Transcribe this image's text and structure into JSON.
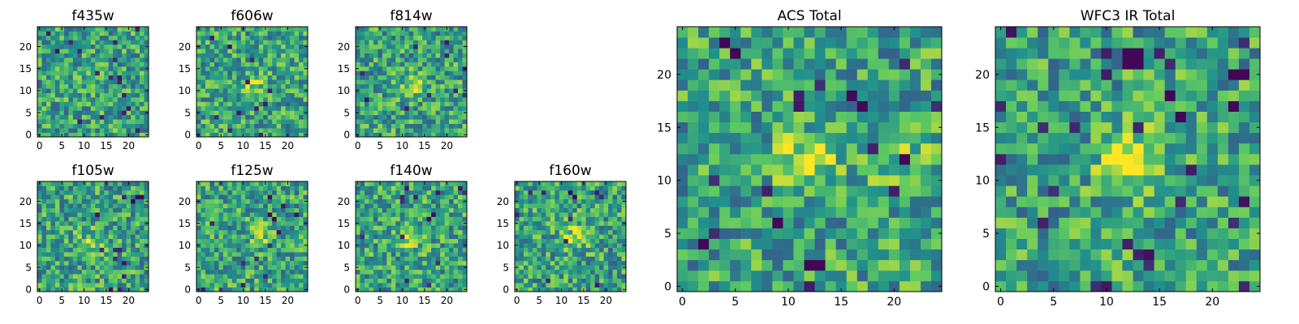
{
  "chart_data": [
    {
      "type": "heatmap",
      "title": "f435w",
      "grid_size": 25,
      "x_ticks": [
        0,
        5,
        10,
        15,
        20
      ],
      "y_ticks": [
        0,
        5,
        10,
        15,
        20
      ],
      "hot_spots": [],
      "dark_spots": []
    },
    {
      "type": "heatmap",
      "title": "f606w",
      "grid_size": 25,
      "x_ticks": [
        0,
        5,
        10,
        15,
        20
      ],
      "y_ticks": [
        0,
        5,
        10,
        15,
        20
      ],
      "hot_spots": [
        [
          12,
          11,
          0.25
        ]
      ],
      "dark_spots": []
    },
    {
      "type": "heatmap",
      "title": "f814w",
      "grid_size": 25,
      "x_ticks": [
        0,
        5,
        10,
        15,
        20
      ],
      "y_ticks": [
        0,
        5,
        10,
        15,
        20
      ],
      "hot_spots": [
        [
          13,
          11,
          0.25
        ]
      ],
      "dark_spots": []
    },
    {
      "type": "heatmap",
      "title": "f105w",
      "grid_size": 25,
      "x_ticks": [
        0,
        5,
        10,
        15,
        20
      ],
      "y_ticks": [
        0,
        5,
        10,
        15,
        20
      ],
      "hot_spots": [
        [
          12,
          11,
          0.2
        ]
      ],
      "dark_spots": [
        [
          22,
          21
        ],
        [
          23,
          21
        ],
        [
          21,
          20
        ]
      ]
    },
    {
      "type": "heatmap",
      "title": "f125w",
      "grid_size": 25,
      "x_ticks": [
        0,
        5,
        10,
        15,
        20
      ],
      "y_ticks": [
        0,
        5,
        10,
        15,
        20
      ],
      "hot_spots": [
        [
          14,
          13,
          0.25
        ]
      ],
      "dark_spots": [
        [
          16,
          17
        ],
        [
          17,
          16
        ]
      ]
    },
    {
      "type": "heatmap",
      "title": "f140w",
      "grid_size": 25,
      "x_ticks": [
        0,
        5,
        10,
        15,
        20
      ],
      "y_ticks": [
        0,
        5,
        10,
        15,
        20
      ],
      "hot_spots": [
        [
          12,
          12,
          0.25
        ]
      ],
      "dark_spots": [
        [
          16,
          16
        ],
        [
          17,
          17
        ]
      ]
    },
    {
      "type": "heatmap",
      "title": "f160w",
      "grid_size": 25,
      "x_ticks": [
        0,
        5,
        10,
        15,
        20
      ],
      "y_ticks": [
        0,
        5,
        10,
        15,
        20
      ],
      "hot_spots": [
        [
          13,
          12,
          0.3
        ]
      ],
      "dark_spots": [
        [
          12,
          22
        ],
        [
          13,
          21
        ]
      ]
    },
    {
      "type": "heatmap",
      "title": "ACS Total",
      "grid_size": 25,
      "x_ticks": [
        0,
        5,
        10,
        15,
        20
      ],
      "y_ticks": [
        0,
        5,
        10,
        15,
        20
      ],
      "hot_spots": [
        [
          12,
          12,
          0.35
        ],
        [
          21,
          11,
          0.2
        ]
      ],
      "dark_spots": [
        [
          4,
          23
        ],
        [
          5,
          22
        ],
        [
          16,
          18
        ],
        [
          17,
          17
        ],
        [
          21,
          12
        ],
        [
          9,
          6
        ],
        [
          12,
          2
        ],
        [
          13,
          2
        ],
        [
          2,
          4
        ]
      ]
    },
    {
      "type": "heatmap",
      "title": "WFC3 IR Total",
      "grid_size": 25,
      "x_ticks": [
        0,
        5,
        10,
        15,
        20
      ],
      "y_ticks": [
        0,
        5,
        10,
        15,
        20
      ],
      "hot_spots": [
        [
          12,
          12,
          0.45
        ]
      ],
      "dark_spots": [
        [
          12,
          21
        ],
        [
          13,
          21
        ],
        [
          12,
          22
        ],
        [
          13,
          22
        ],
        [
          22,
          20
        ],
        [
          23,
          20
        ],
        [
          16,
          18
        ],
        [
          22,
          17
        ],
        [
          17,
          16
        ]
      ]
    }
  ],
  "colormap": [
    "#440154",
    "#3b528b",
    "#21918c",
    "#5ec962",
    "#fde725"
  ]
}
